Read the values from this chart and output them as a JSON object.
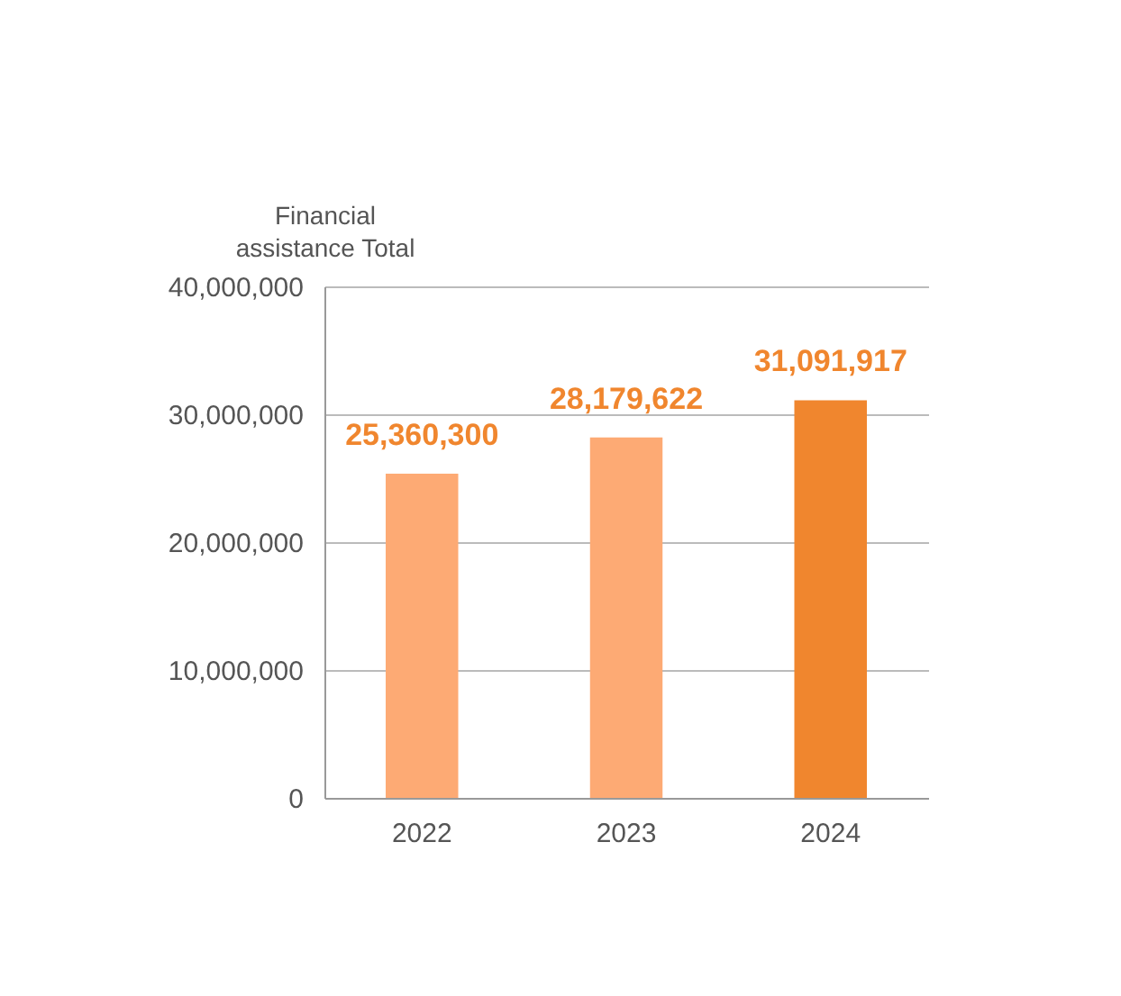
{
  "chart_data": {
    "type": "bar",
    "ylabel": "Financial\nassistance Total",
    "categories": [
      "2022",
      "2023",
      "2024"
    ],
    "values": [
      25360300,
      28179622,
      31091917
    ],
    "colors": [
      "#fdaa74",
      "#fdaa74",
      "#f0862e"
    ],
    "ylim": [
      0,
      40000000
    ],
    "yticks": [
      0,
      {
        "value": 10000000,
        "label": "10,000,000"
      },
      {
        "value": 20000000,
        "label": "20,000,000"
      },
      {
        "value": 30000000,
        "label": "30,000,000"
      },
      {
        "value": 40000000,
        "label": "40,000,000"
      }
    ],
    "grid": "y",
    "value_labels": [
      "25,360,300",
      "28,179,622",
      "31,091,917"
    ]
  }
}
